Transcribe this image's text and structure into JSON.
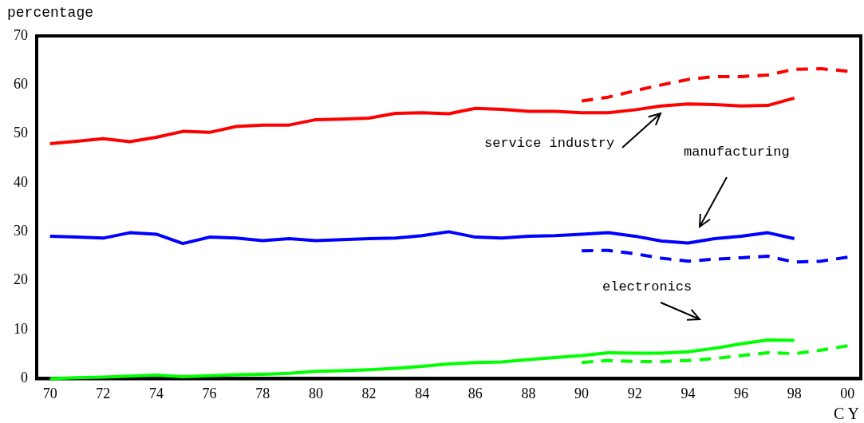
{
  "chart_data": {
    "type": "line",
    "ylabel": "percentage",
    "xlabel": "C Y",
    "categories": [
      "70",
      null,
      "72",
      null,
      "74",
      null,
      "76",
      null,
      "78",
      null,
      "80",
      null,
      "82",
      null,
      "84",
      null,
      "86",
      null,
      "88",
      null,
      "90",
      null,
      "92",
      null,
      "94",
      null,
      "96",
      null,
      "98",
      null,
      "00"
    ],
    "ylim": [
      0,
      70
    ],
    "yticks": [
      0,
      10,
      20,
      30,
      40,
      50,
      60,
      70
    ],
    "grid": false,
    "legend": false,
    "marker": "none",
    "series": [
      {
        "color": "#ff0000",
        "line_style": "solid",
        "values": [
          48,
          48.5,
          49,
          48.4,
          49.3,
          50.5,
          50.3,
          51.5,
          51.8,
          51.8,
          52.9,
          53,
          53.2,
          54.2,
          54.3,
          54.1,
          55.2,
          55,
          54.6,
          54.6,
          54.3,
          54.3,
          54.9,
          55.7,
          56.1,
          56,
          55.7,
          55.8,
          57.3,
          null,
          null
        ]
      },
      {
        "color": "#ff0000",
        "line_style": "dashed",
        "values": [
          null,
          null,
          null,
          null,
          null,
          null,
          null,
          null,
          null,
          null,
          null,
          null,
          null,
          null,
          null,
          null,
          null,
          null,
          null,
          null,
          56.7,
          57.5,
          58.8,
          60,
          61.1,
          61.7,
          61.7,
          62,
          63.2,
          63.3,
          62.8
        ]
      },
      {
        "color": "#0000ff",
        "line_style": "solid",
        "values": [
          29.1,
          28.9,
          28.7,
          29.8,
          29.5,
          27.6,
          28.9,
          28.7,
          28.2,
          28.6,
          28.2,
          28.4,
          28.6,
          28.7,
          29.2,
          30,
          28.9,
          28.7,
          29.1,
          29.2,
          29.5,
          29.8,
          29.1,
          28.1,
          27.7,
          28.6,
          29.1,
          29.8,
          28.6,
          null,
          null
        ]
      },
      {
        "color": "#0000ff",
        "line_style": "dashed",
        "values": [
          null,
          null,
          null,
          null,
          null,
          null,
          null,
          null,
          null,
          null,
          null,
          null,
          null,
          null,
          null,
          null,
          null,
          null,
          null,
          null,
          26.1,
          26.2,
          25.5,
          24.6,
          24,
          24.4,
          24.7,
          25,
          23.8,
          24,
          24.8
        ]
      },
      {
        "color": "#00ff00",
        "line_style": "solid",
        "values": [
          0,
          0.2,
          0.3,
          0.5,
          0.7,
          0.4,
          0.6,
          0.8,
          0.9,
          1.1,
          1.5,
          1.6,
          1.8,
          2.1,
          2.5,
          3,
          3.3,
          3.4,
          3.9,
          4.3,
          4.7,
          5.3,
          5.2,
          5.2,
          5.5,
          6.2,
          7.1,
          7.9,
          7.8,
          null,
          null
        ]
      },
      {
        "color": "#00ff00",
        "line_style": "dashed",
        "values": [
          null,
          null,
          null,
          null,
          null,
          null,
          null,
          null,
          null,
          null,
          null,
          null,
          null,
          null,
          null,
          null,
          null,
          null,
          null,
          null,
          3.3,
          3.7,
          3.5,
          3.5,
          3.7,
          4.1,
          4.7,
          5.3,
          5.1,
          5.8,
          6.7
        ]
      }
    ],
    "annotations": [
      "service industry",
      "manufacturing",
      "electronics"
    ]
  }
}
